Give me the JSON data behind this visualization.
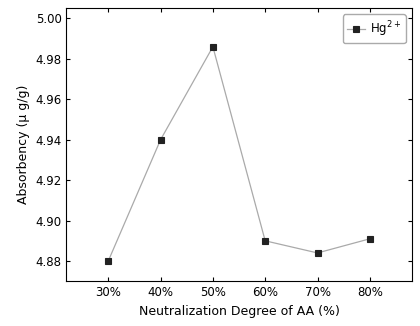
{
  "x_labels": [
    "30%",
    "40%",
    "50%",
    "60%",
    "70%",
    "80%"
  ],
  "x_values": [
    30,
    40,
    50,
    60,
    70,
    80
  ],
  "y_values": [
    4.88,
    4.94,
    4.986,
    4.89,
    4.884,
    4.891
  ],
  "ylim": [
    4.87,
    5.005
  ],
  "yticks": [
    4.88,
    4.9,
    4.92,
    4.94,
    4.96,
    4.98,
    5.0
  ],
  "xlabel": "Neutralization Degree of AA (%)",
  "ylabel": "Absorbency (μ g/g)",
  "legend_label": "Hg$^{2+}$",
  "line_color": "#aaaaaa",
  "marker_color": "#222222",
  "marker": "s",
  "marker_size": 4,
  "line_width": 0.9,
  "background_color": "#ffffff",
  "label_fontsize": 9,
  "tick_fontsize": 8.5,
  "legend_fontsize": 8.5
}
